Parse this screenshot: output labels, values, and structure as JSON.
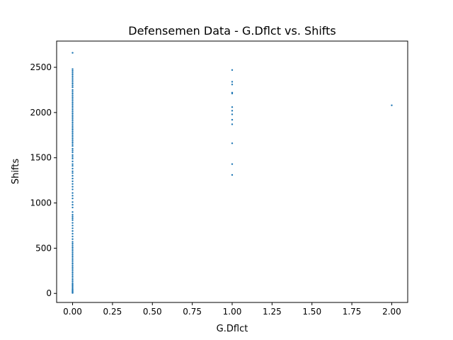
{
  "chart_data": {
    "type": "scatter",
    "title": "Defensemen Data - G.Dflct vs. Shifts",
    "xlabel": "G.Dflct",
    "ylabel": "Shifts",
    "xlim": [
      -0.1,
      2.1
    ],
    "ylim": [
      -100,
      2790
    ],
    "x_ticks": [
      0.0,
      0.25,
      0.5,
      0.75,
      1.0,
      1.25,
      1.5,
      1.75,
      2.0
    ],
    "x_tick_labels": [
      "0.00",
      "0.25",
      "0.50",
      "0.75",
      "1.00",
      "1.25",
      "1.50",
      "1.75",
      "2.00"
    ],
    "y_ticks": [
      0,
      500,
      1000,
      1500,
      2000,
      2500
    ],
    "y_tick_labels": [
      "0",
      "500",
      "1000",
      "1500",
      "2000",
      "2500"
    ],
    "grid": false,
    "marker_color": "#1f77b4",
    "series": [
      {
        "points": [
          [
            0,
            2660
          ],
          [
            0,
            2480
          ],
          [
            0,
            2460
          ],
          [
            0,
            2440
          ],
          [
            0,
            2420
          ],
          [
            0,
            2400
          ],
          [
            0,
            2380
          ],
          [
            0,
            2360
          ],
          [
            0,
            2340
          ],
          [
            0,
            2320
          ],
          [
            0,
            2300
          ],
          [
            0,
            2280
          ],
          [
            0,
            2250
          ],
          [
            0,
            2230
          ],
          [
            0,
            2210
          ],
          [
            0,
            2190
          ],
          [
            0,
            2170
          ],
          [
            0,
            2150
          ],
          [
            0,
            2130
          ],
          [
            0,
            2110
          ],
          [
            0,
            2090
          ],
          [
            0,
            2070
          ],
          [
            0,
            2050
          ],
          [
            0,
            2030
          ],
          [
            0,
            2010
          ],
          [
            0,
            1990
          ],
          [
            0,
            1970
          ],
          [
            0,
            1950
          ],
          [
            0,
            1930
          ],
          [
            0,
            1910
          ],
          [
            0,
            1890
          ],
          [
            0,
            1870
          ],
          [
            0,
            1850
          ],
          [
            0,
            1830
          ],
          [
            0,
            1810
          ],
          [
            0,
            1790
          ],
          [
            0,
            1770
          ],
          [
            0,
            1750
          ],
          [
            0,
            1730
          ],
          [
            0,
            1710
          ],
          [
            0,
            1690
          ],
          [
            0,
            1670
          ],
          [
            0,
            1650
          ],
          [
            0,
            1630
          ],
          [
            0,
            1600
          ],
          [
            0,
            1580
          ],
          [
            0,
            1560
          ],
          [
            0,
            1530
          ],
          [
            0,
            1510
          ],
          [
            0,
            1490
          ],
          [
            0,
            1460
          ],
          [
            0,
            1430
          ],
          [
            0,
            1410
          ],
          [
            0,
            1380
          ],
          [
            0,
            1350
          ],
          [
            0,
            1330
          ],
          [
            0,
            1300
          ],
          [
            0,
            1270
          ],
          [
            0,
            1240
          ],
          [
            0,
            1210
          ],
          [
            0,
            1180
          ],
          [
            0,
            1150
          ],
          [
            0,
            1110
          ],
          [
            0,
            1080
          ],
          [
            0,
            1050
          ],
          [
            0,
            1010
          ],
          [
            0,
            980
          ],
          [
            0,
            950
          ],
          [
            0,
            900
          ],
          [
            0,
            870
          ],
          [
            0,
            850
          ],
          [
            0,
            830
          ],
          [
            0,
            810
          ],
          [
            0,
            780
          ],
          [
            0,
            750
          ],
          [
            0,
            720
          ],
          [
            0,
            690
          ],
          [
            0,
            660
          ],
          [
            0,
            630
          ],
          [
            0,
            600
          ],
          [
            0,
            570
          ],
          [
            0,
            550
          ],
          [
            0,
            530
          ],
          [
            0,
            510
          ],
          [
            0,
            490
          ],
          [
            0,
            470
          ],
          [
            0,
            450
          ],
          [
            0,
            430
          ],
          [
            0,
            410
          ],
          [
            0,
            390
          ],
          [
            0,
            370
          ],
          [
            0,
            350
          ],
          [
            0,
            330
          ],
          [
            0,
            310
          ],
          [
            0,
            290
          ],
          [
            0,
            270
          ],
          [
            0,
            250
          ],
          [
            0,
            230
          ],
          [
            0,
            210
          ],
          [
            0,
            190
          ],
          [
            0,
            170
          ],
          [
            0,
            150
          ],
          [
            0,
            130
          ],
          [
            0,
            110
          ],
          [
            0,
            95
          ],
          [
            0,
            80
          ],
          [
            0,
            65
          ],
          [
            0,
            50
          ],
          [
            0,
            40
          ],
          [
            0,
            30
          ],
          [
            0,
            20
          ],
          [
            0,
            12
          ],
          [
            0,
            5
          ],
          [
            1,
            2470
          ],
          [
            1,
            2340
          ],
          [
            1,
            2310
          ],
          [
            1,
            2220
          ],
          [
            1,
            2210
          ],
          [
            1,
            2060
          ],
          [
            1,
            2020
          ],
          [
            1,
            1980
          ],
          [
            1,
            1920
          ],
          [
            1,
            1870
          ],
          [
            1,
            1660
          ],
          [
            1,
            1430
          ],
          [
            1,
            1310
          ],
          [
            2,
            2080
          ]
        ]
      }
    ]
  }
}
